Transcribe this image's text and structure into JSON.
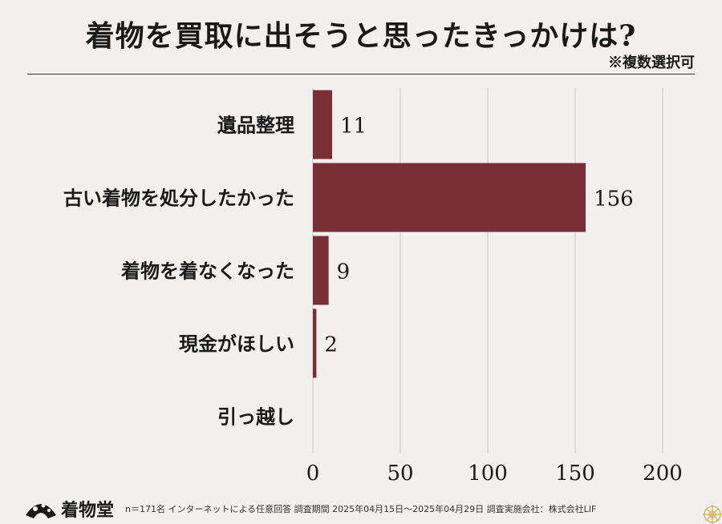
{
  "header": {
    "title": "着物を買取に出そうと思ったきっかけは?",
    "note": "※複数選択可"
  },
  "chart_data": {
    "type": "bar",
    "orientation": "horizontal",
    "categories": [
      "遺品整理",
      "古い着物を処分したかった",
      "着物を着なくなった",
      "現金がほしい",
      "引っ越し"
    ],
    "values": [
      11,
      156,
      9,
      2,
      0
    ],
    "data_labels": [
      "11",
      "156",
      "9",
      "2",
      ""
    ],
    "xlim": [
      0,
      200
    ],
    "xticks": [
      0,
      50,
      100,
      150,
      200
    ],
    "grid": true,
    "bar_color": "#7a2e35",
    "grid_color": "#c9c7c4"
  },
  "footer": {
    "logo_text": "着物堂",
    "note": "n＝171名 インターネットによる任意回答 調査期間 2025年04月15日〜2025年04月29日 調査実施会社：株式会社LIF"
  }
}
